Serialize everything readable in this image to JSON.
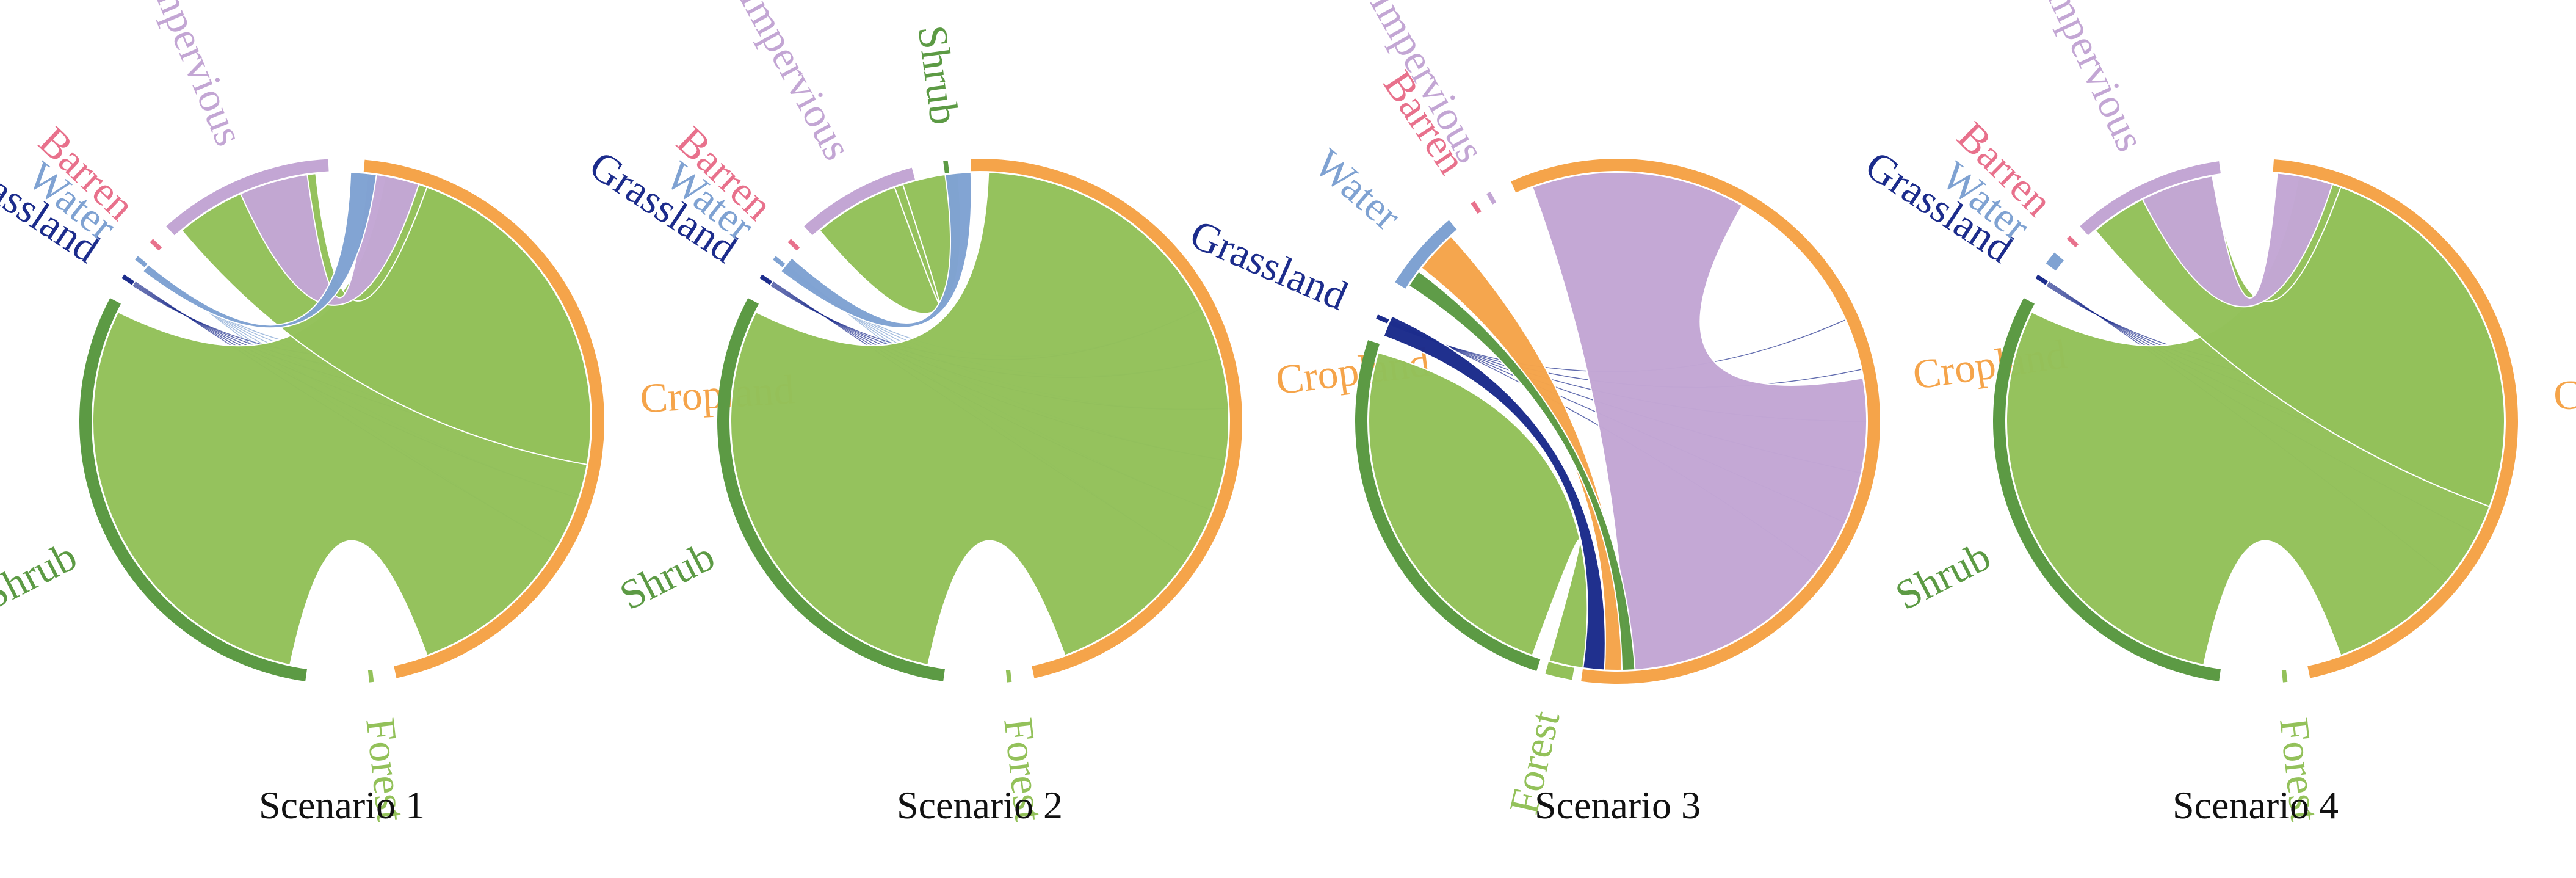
{
  "colors": {
    "Shrub": "#5c9a44",
    "Forest": "#93c15a",
    "Cropland": "#f5a44a",
    "Impervious": "#c3a6d4",
    "Barren": "#e8718c",
    "Water": "#7fa2d2",
    "Grassland": "#1c2c8c"
  },
  "diagrams": [
    {
      "caption": "Scenario 1",
      "segments": [
        {
          "name": "Shrub",
          "label": "Shrub",
          "a1": 188,
          "a2": 298
        },
        {
          "name": "Grassland",
          "label": "Grassland",
          "a1": 303,
          "a2": 304
        },
        {
          "name": "Water",
          "label": "Water",
          "a1": 308,
          "a2": 309
        },
        {
          "name": "Barren",
          "label": "Barren",
          "a1": 313,
          "a2": 314
        },
        {
          "name": "Impervious",
          "label": "Impervious",
          "a1": 318,
          "a2": 357
        },
        {
          "name": "Cropland",
          "label": "Cropland",
          "a1": 5,
          "a2": 168
        },
        {
          "name": "Forest",
          "label": "Forest",
          "a1": 173,
          "a2": 174
        }
      ],
      "ribbons": [
        {
          "from": "Shrub",
          "to": "Cropland",
          "s1": 192,
          "s2": 296,
          "t1": 10,
          "t2": 160,
          "color": "Forest"
        },
        {
          "from": "Impervious",
          "to": "Cropland",
          "s1": 320,
          "s2": 354,
          "t1": 20,
          "t2": 100,
          "color": "Forest"
        },
        {
          "from": "Cropland",
          "to": "Cropland",
          "s1": 6,
          "s2": 18,
          "t1": 336,
          "t2": 352,
          "color": "Impervious"
        },
        {
          "from": "Water",
          "to": "Cropland",
          "s1": 307,
          "s2": 309,
          "t1": 2,
          "t2": 8,
          "color": "Water"
        }
      ]
    },
    {
      "caption": "Scenario 2",
      "segments": [
        {
          "name": "Shrub",
          "label": "Shrub",
          "a1": 188,
          "a2": 298
        },
        {
          "name": "Grassland",
          "label": "Grassland",
          "a1": 303,
          "a2": 304
        },
        {
          "name": "Water",
          "label": "Water",
          "a1": 308,
          "a2": 309
        },
        {
          "name": "Barren",
          "label": "Barren",
          "a1": 313,
          "a2": 314
        },
        {
          "name": "Impervious",
          "label": "Impervious",
          "a1": 318,
          "a2": 345
        },
        {
          "name": "Shrub",
          "label": "Shrub",
          "a1": 352,
          "a2": 353
        },
        {
          "name": "Cropland",
          "label": "Cropland",
          "a1": 358,
          "a2": 168
        },
        {
          "name": "Forest",
          "label": "Forest",
          "a1": 173,
          "a2": 174
        }
      ],
      "ribbons": [
        {
          "from": "Shrub",
          "to": "Cropland",
          "s1": 192,
          "s2": 296,
          "t1": 2,
          "t2": 160,
          "color": "Forest"
        },
        {
          "from": "Impervious",
          "to": "Cropland",
          "s1": 320,
          "s2": 342,
          "t1": 340,
          "t2": 355,
          "color": "Forest"
        },
        {
          "from": "Water",
          "to": "Cropland",
          "s1": 307,
          "s2": 311,
          "t1": 352,
          "t2": 358,
          "color": "Water"
        }
      ]
    },
    {
      "caption": "Scenario 3",
      "segments": [
        {
          "name": "Shrub",
          "label": "",
          "a1": 198,
          "a2": 288
        },
        {
          "name": "Grassland",
          "label": "Grassland",
          "a1": 293,
          "a2": 294
        },
        {
          "name": "Water",
          "label": "Water",
          "a1": 302,
          "a2": 320
        },
        {
          "name": "Barren",
          "label": "Barren",
          "a1": 326,
          "a2": 327
        },
        {
          "name": "Impervious",
          "label": "Impervious",
          "a1": 330,
          "a2": 331
        },
        {
          "name": "Cropland",
          "label": "Cropland",
          "a1": 336,
          "a2": 188
        },
        {
          "name": "Forest",
          "label": "Forest",
          "a1": 190,
          "a2": 196
        }
      ],
      "ribbons": [
        {
          "from": "Shrub",
          "to": "Forest",
          "s1": 200,
          "s2": 286,
          "t1": 188,
          "t2": 196,
          "color": "Forest"
        },
        {
          "from": "Cropland",
          "to": "Cropland",
          "s1": 340,
          "s2": 30,
          "t1": 80,
          "t2": 178,
          "color": "Impervious"
        },
        {
          "from": "Water",
          "to": "Cropland",
          "s1": 308,
          "s2": 318,
          "t1": 178,
          "t2": 183,
          "color": "Cropland"
        },
        {
          "from": "Grassland",
          "to": "Cropland",
          "s1": 290,
          "s2": 295,
          "t1": 183,
          "t2": 188,
          "color": "Grassland"
        },
        {
          "from": "Water",
          "to": "Cropland",
          "s1": 303,
          "s2": 307,
          "t1": 176,
          "t2": 179,
          "color": "Shrub"
        }
      ]
    },
    {
      "caption": "Scenario 4",
      "segments": [
        {
          "name": "Shrub",
          "label": "Shrub",
          "a1": 188,
          "a2": 298
        },
        {
          "name": "Grassland",
          "label": "Grassland",
          "a1": 303,
          "a2": 304
        },
        {
          "name": "Water",
          "label": "Water",
          "a1": 307,
          "a2": 310
        },
        {
          "name": "Barren",
          "label": "Barren",
          "a1": 314,
          "a2": 315
        },
        {
          "name": "Impervious",
          "label": "Impervious",
          "a1": 318,
          "a2": 352
        },
        {
          "name": "Cropland",
          "label": "Cropland",
          "a1": 4,
          "a2": 168
        },
        {
          "name": "Forest",
          "label": "Forest",
          "a1": 173,
          "a2": 174
        }
      ],
      "ribbons": [
        {
          "from": "Shrub",
          "to": "Cropland",
          "s1": 192,
          "s2": 296,
          "t1": 10,
          "t2": 160,
          "color": "Forest"
        },
        {
          "from": "Impervious",
          "to": "Cropland",
          "s1": 320,
          "s2": 350,
          "t1": 20,
          "t2": 110,
          "color": "Forest"
        },
        {
          "from": "Cropland",
          "to": "Cropland",
          "s1": 5,
          "s2": 18,
          "t1": 333,
          "t2": 350,
          "color": "Impervious"
        }
      ]
    }
  ]
}
